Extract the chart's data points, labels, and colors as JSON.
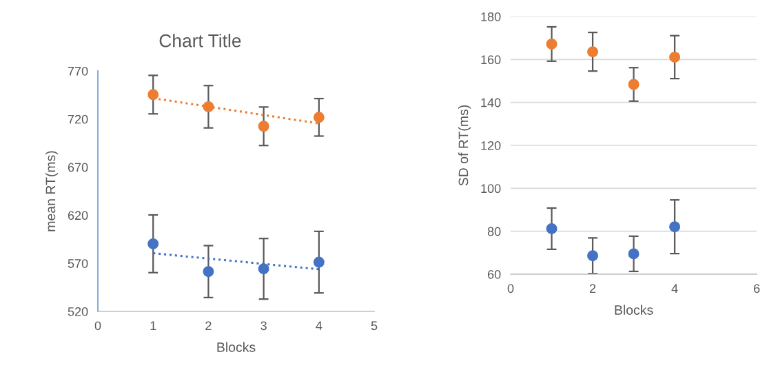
{
  "chart_data": [
    {
      "type": "scatter",
      "title": "Chart Title",
      "xlabel": "Blocks",
      "ylabel": "mean RT(ms)",
      "xlim": [
        0,
        5
      ],
      "xticks": [
        0,
        1,
        2,
        3,
        4,
        5
      ],
      "ylim": [
        520,
        770
      ],
      "yticks": [
        520,
        570,
        620,
        670,
        720,
        770
      ],
      "grid": false,
      "marker": "circle",
      "series": [
        {
          "color": "#ed7d31",
          "x": [
            1,
            2,
            3,
            4
          ],
          "values": [
            745.4,
            732.8,
            712.5,
            721.8
          ],
          "errors": [
            20,
            22,
            20,
            19.5
          ]
        },
        {
          "color": "#4472c4",
          "x": [
            1,
            2,
            3,
            4
          ],
          "values": [
            590.3,
            561.4,
            564.3,
            571.2
          ],
          "errors": [
            30,
            27,
            31.5,
            32
          ]
        },
        {
          "type": "line",
          "marker": "none",
          "color": "#ed7d31",
          "line_style": "dotted",
          "x": [
            1,
            4
          ],
          "values": [
            741.7,
            715.4
          ]
        },
        {
          "type": "line",
          "marker": "none",
          "color": "#4472c4",
          "line_style": "dotted",
          "x": [
            1,
            4
          ],
          "values": [
            580.5,
            563.8
          ]
        }
      ]
    },
    {
      "type": "scatter",
      "xlabel": "Blocks",
      "ylabel": "SD of RT(ms)",
      "xlim": [
        0,
        6
      ],
      "xticks": [
        0,
        2,
        4,
        6
      ],
      "ylim": [
        60,
        180
      ],
      "yticks": [
        60,
        80,
        100,
        120,
        140,
        160,
        180
      ],
      "grid": "y",
      "marker": "circle",
      "series": [
        {
          "color": "#ed7d31",
          "x": [
            1,
            2,
            3,
            4
          ],
          "values": [
            167.2,
            163.6,
            148.4,
            161.1
          ],
          "errors": [
            8,
            9,
            7.8,
            10
          ]
        },
        {
          "color": "#4472c4",
          "x": [
            1,
            2,
            3,
            4
          ],
          "values": [
            81.2,
            68.6,
            69.5,
            82.1
          ],
          "errors": [
            9.6,
            8.3,
            8.2,
            12.5
          ]
        }
      ]
    }
  ]
}
